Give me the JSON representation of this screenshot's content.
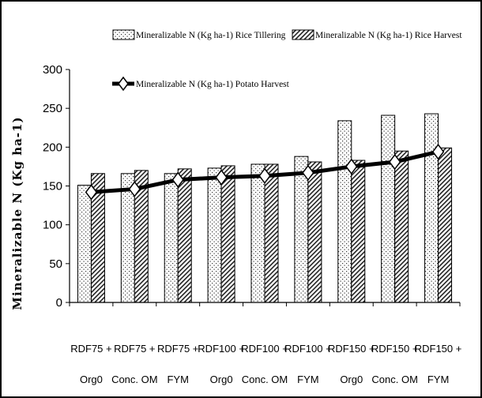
{
  "chart_data": {
    "type": "bar",
    "ylabel": "Mineralizable N (Kg ha-1)",
    "ylim": [
      0,
      300
    ],
    "yticks": [
      0,
      50,
      100,
      150,
      200,
      250,
      300
    ],
    "categories": [
      [
        "RDF75 +",
        "Org0"
      ],
      [
        "RDF75 +",
        "Conc. OM"
      ],
      [
        "RDF75 +",
        "FYM"
      ],
      [
        "RDF100 +",
        "Org0"
      ],
      [
        "RDF100 +",
        "Conc. OM"
      ],
      [
        "RDF100 +",
        "FYM"
      ],
      [
        "RDF150 +",
        "Org0"
      ],
      [
        "RDF150 +",
        "Conc. OM"
      ],
      [
        "RDF150 +",
        "FYM"
      ]
    ],
    "series": [
      {
        "name": "Mineralizable N (Kg ha-1) Rice Tillering",
        "type": "bar",
        "pattern": "dots",
        "values": [
          151,
          166,
          166,
          173,
          178,
          188,
          234,
          241,
          243
        ]
      },
      {
        "name": "Mineralizable N (Kg ha-1) Rice Harvest",
        "type": "bar",
        "pattern": "diagonal",
        "values": [
          166,
          170,
          172,
          176,
          178,
          181,
          183,
          195,
          199
        ]
      },
      {
        "name": "Mineralizable N (Kg ha-1) Potato Harvest",
        "type": "line",
        "marker": "diamond",
        "values": [
          142,
          146,
          158,
          161,
          163,
          167,
          175,
          181,
          194
        ]
      }
    ],
    "legend_position": "top",
    "grid": false
  }
}
